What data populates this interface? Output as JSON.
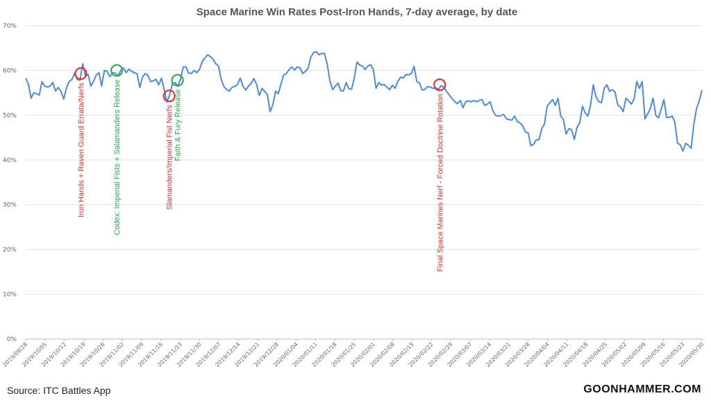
{
  "chart_data": {
    "type": "line",
    "title": "Space Marine Win Rates Post-Iron Hands, 7-day average, by date",
    "xlabel": "",
    "ylabel": "",
    "y_unit": "%",
    "ylim": [
      0,
      70
    ],
    "yticks": [
      "0%",
      "10%",
      "20%",
      "30%",
      "40%",
      "50%",
      "60%",
      "70%"
    ],
    "grid": true,
    "x_start": "2019/09/28",
    "x_end": "2020/05/30",
    "x_tick_labels": [
      "2019/09/28",
      "2019/10/05",
      "2019/10/12",
      "2019/10/19",
      "2019/10/26",
      "2019/11/02",
      "2019/11/09",
      "2019/11/16",
      "2019/11/23",
      "2019/11/30",
      "2019/12/07",
      "2019/12/14",
      "2019/12/21",
      "2019/12/28",
      "2020/01/04",
      "2020/01/11",
      "2020/01/18",
      "2020/01/25",
      "2020/02/01",
      "2020/02/08",
      "2020/02/15",
      "2020/02/22",
      "2020/02/29",
      "2020/03/07",
      "2020/03/14",
      "2020/03/21",
      "2020/03/28",
      "2020/04/04",
      "2020/04/11",
      "2020/04/18",
      "2020/04/25",
      "2020/05/02",
      "2020/05/09",
      "2020/05/16",
      "2020/05/23",
      "2020/05/30"
    ],
    "series": [
      {
        "color": "#4a8ae0",
        "values": [
          58.3,
          57.0,
          53.8,
          55.0,
          54.8,
          54.5,
          57.5,
          56.5,
          56.3,
          56.5,
          57.3,
          55.4,
          56.2,
          55.3,
          53.6,
          56.1,
          57.5,
          58.0,
          59.3,
          58.0,
          57.8,
          61.5,
          58.8,
          59.1,
          56.5,
          57.6,
          59.0,
          59.5,
          56.5,
          60.0,
          59.8,
          58.6,
          59.5,
          59.4,
          58.8,
          60.0,
          60.6,
          59.5,
          60.3,
          59.8,
          59.5,
          59.3,
          56.2,
          58.5,
          59.3,
          58.9,
          57.5,
          57.7,
          58.0,
          56.8,
          58.3,
          55.7,
          53.0,
          54.5,
          57.0,
          57.3,
          56.5,
          58.0,
          60.8,
          60.8,
          59.4,
          59.3,
          60.0,
          59.5,
          60.2,
          62.0,
          62.8,
          63.5,
          63.1,
          62.5,
          61.5,
          61.0,
          58.0,
          56.4,
          55.7,
          55.4,
          56.3,
          56.4,
          56.9,
          58.3,
          56.5,
          55.6,
          56.5,
          57.1,
          58.2,
          56.9,
          54.4,
          56.0,
          55.3,
          54.6,
          50.8,
          52.3,
          55.4,
          54.8,
          57.0,
          59.0,
          59.3,
          60.2,
          60.8,
          60.1,
          60.8,
          60.6,
          59.3,
          59.8,
          60.5,
          63.0,
          64.0,
          64.2,
          63.5,
          63.8,
          63.8,
          61.5,
          57.7,
          55.7,
          56.5,
          57.2,
          55.5,
          55.4,
          57.3,
          55.9,
          55.8,
          58.4,
          61.9,
          61.2,
          61.0,
          60.2,
          61.0,
          61.3,
          60.2,
          56.0,
          57.3,
          56.7,
          56.9,
          56.3,
          55.7,
          56.7,
          56.0,
          57.5,
          58.5,
          58.3,
          59.1,
          59.0,
          59.3,
          60.9,
          57.5,
          57.2,
          55.6,
          55.8,
          56.4,
          56.3,
          56.0,
          56.1,
          55.8,
          56.6,
          56.2,
          55.3,
          54.5,
          53.7,
          53.0,
          52.6,
          53.3,
          51.7,
          53.0,
          53.2,
          53.0,
          53.3,
          53.0,
          53.3,
          53.5,
          52.2,
          52.5,
          53.0,
          51.0,
          50.0,
          49.8,
          49.9,
          50.2,
          49.2,
          49.0,
          48.9,
          49.8,
          48.6,
          48.3,
          47.6,
          46.3,
          46.0,
          43.2,
          43.5,
          44.5,
          44.5,
          47.0,
          48.0,
          52.0,
          52.8,
          53.5,
          52.2,
          53.8,
          49.8,
          49.0,
          45.8,
          47.0,
          46.8,
          44.6,
          47.3,
          48.3,
          52.0,
          50.5,
          49.8,
          52.3,
          56.8,
          54.1,
          53.0,
          52.8,
          56.0,
          56.8,
          55.3,
          55.7,
          55.2,
          52.3,
          51.8,
          50.8,
          53.8,
          53.2,
          52.5,
          53.6,
          57.5,
          56.0,
          57.5,
          49.2,
          50.3,
          51.5,
          53.8,
          50.0,
          49.4,
          51.3,
          53.5,
          49.5,
          49.5,
          49.8,
          48.5,
          43.8,
          43.4,
          42.0,
          43.7,
          43.3,
          42.6,
          48.0,
          51.5,
          53.2,
          55.6
        ]
      }
    ],
    "annotations": [
      {
        "label": "Iron Hands + Raven Guard Errata/Nerfs",
        "x_date": "2019/10/18",
        "y": 59.3,
        "color": "#e03030"
      },
      {
        "label": "Codex: Imperial Fists + Salamanders Release",
        "x_date": "2019/10/31",
        "y": 60.0,
        "color": "#2eaa4f"
      },
      {
        "label": "Slamanders/Imperial Fist Nerfs",
        "x_date": "2019/11/19",
        "y": 54.3,
        "color": "#e03030"
      },
      {
        "label": "Faith & Fury Release",
        "x_date": "2019/11/22",
        "y": 57.8,
        "color": "#2eaa4f"
      },
      {
        "label": "Final Space Marines Nerf - Forced Doctrine Rotation",
        "x_date": "2020/02/25",
        "y": 56.8,
        "color": "#e03030"
      }
    ]
  },
  "footer": {
    "source": "Source: ITC Battles App",
    "brand": "GOONHAMMER.COM"
  }
}
